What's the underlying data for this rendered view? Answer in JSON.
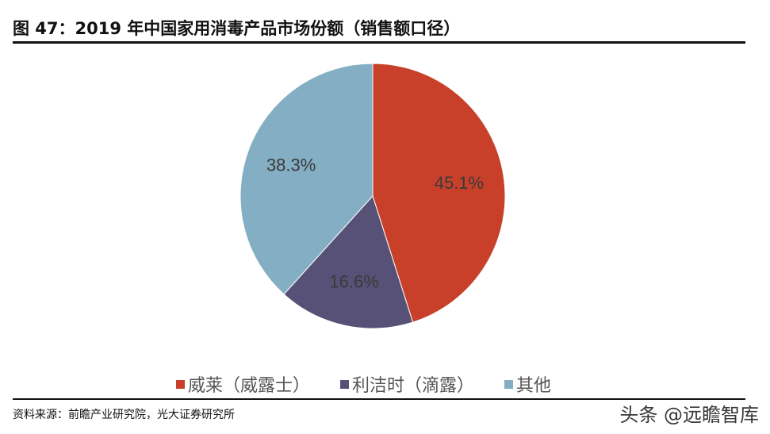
{
  "header": {
    "title": "图 47：2019 年中国家用消毒产品市场份额（销售额口径）"
  },
  "chart_data": {
    "type": "pie",
    "title": "2019 年中国家用消毒产品市场份额（销售额口径）",
    "categories": [
      "威莱（威露士）",
      "利洁时（滴露）",
      "其他"
    ],
    "values": [
      45.1,
      16.6,
      38.3
    ],
    "labels": [
      "45.1%",
      "16.6%",
      "38.3%"
    ],
    "colors": [
      "#C8402A",
      "#575177",
      "#84AEC4"
    ],
    "start_angle_deg": 0,
    "direction": "clockwise",
    "legend_position": "bottom"
  },
  "legend": {
    "items": [
      {
        "label": "威莱（威露士）",
        "color": "#C8402A"
      },
      {
        "label": "利洁时（滴露）",
        "color": "#575177"
      },
      {
        "label": "其他",
        "color": "#84AEC4"
      }
    ]
  },
  "footer": {
    "source": "资料来源：前瞻产业研究院，光大证券研究所",
    "watermark": "头条 @远瞻智库"
  }
}
